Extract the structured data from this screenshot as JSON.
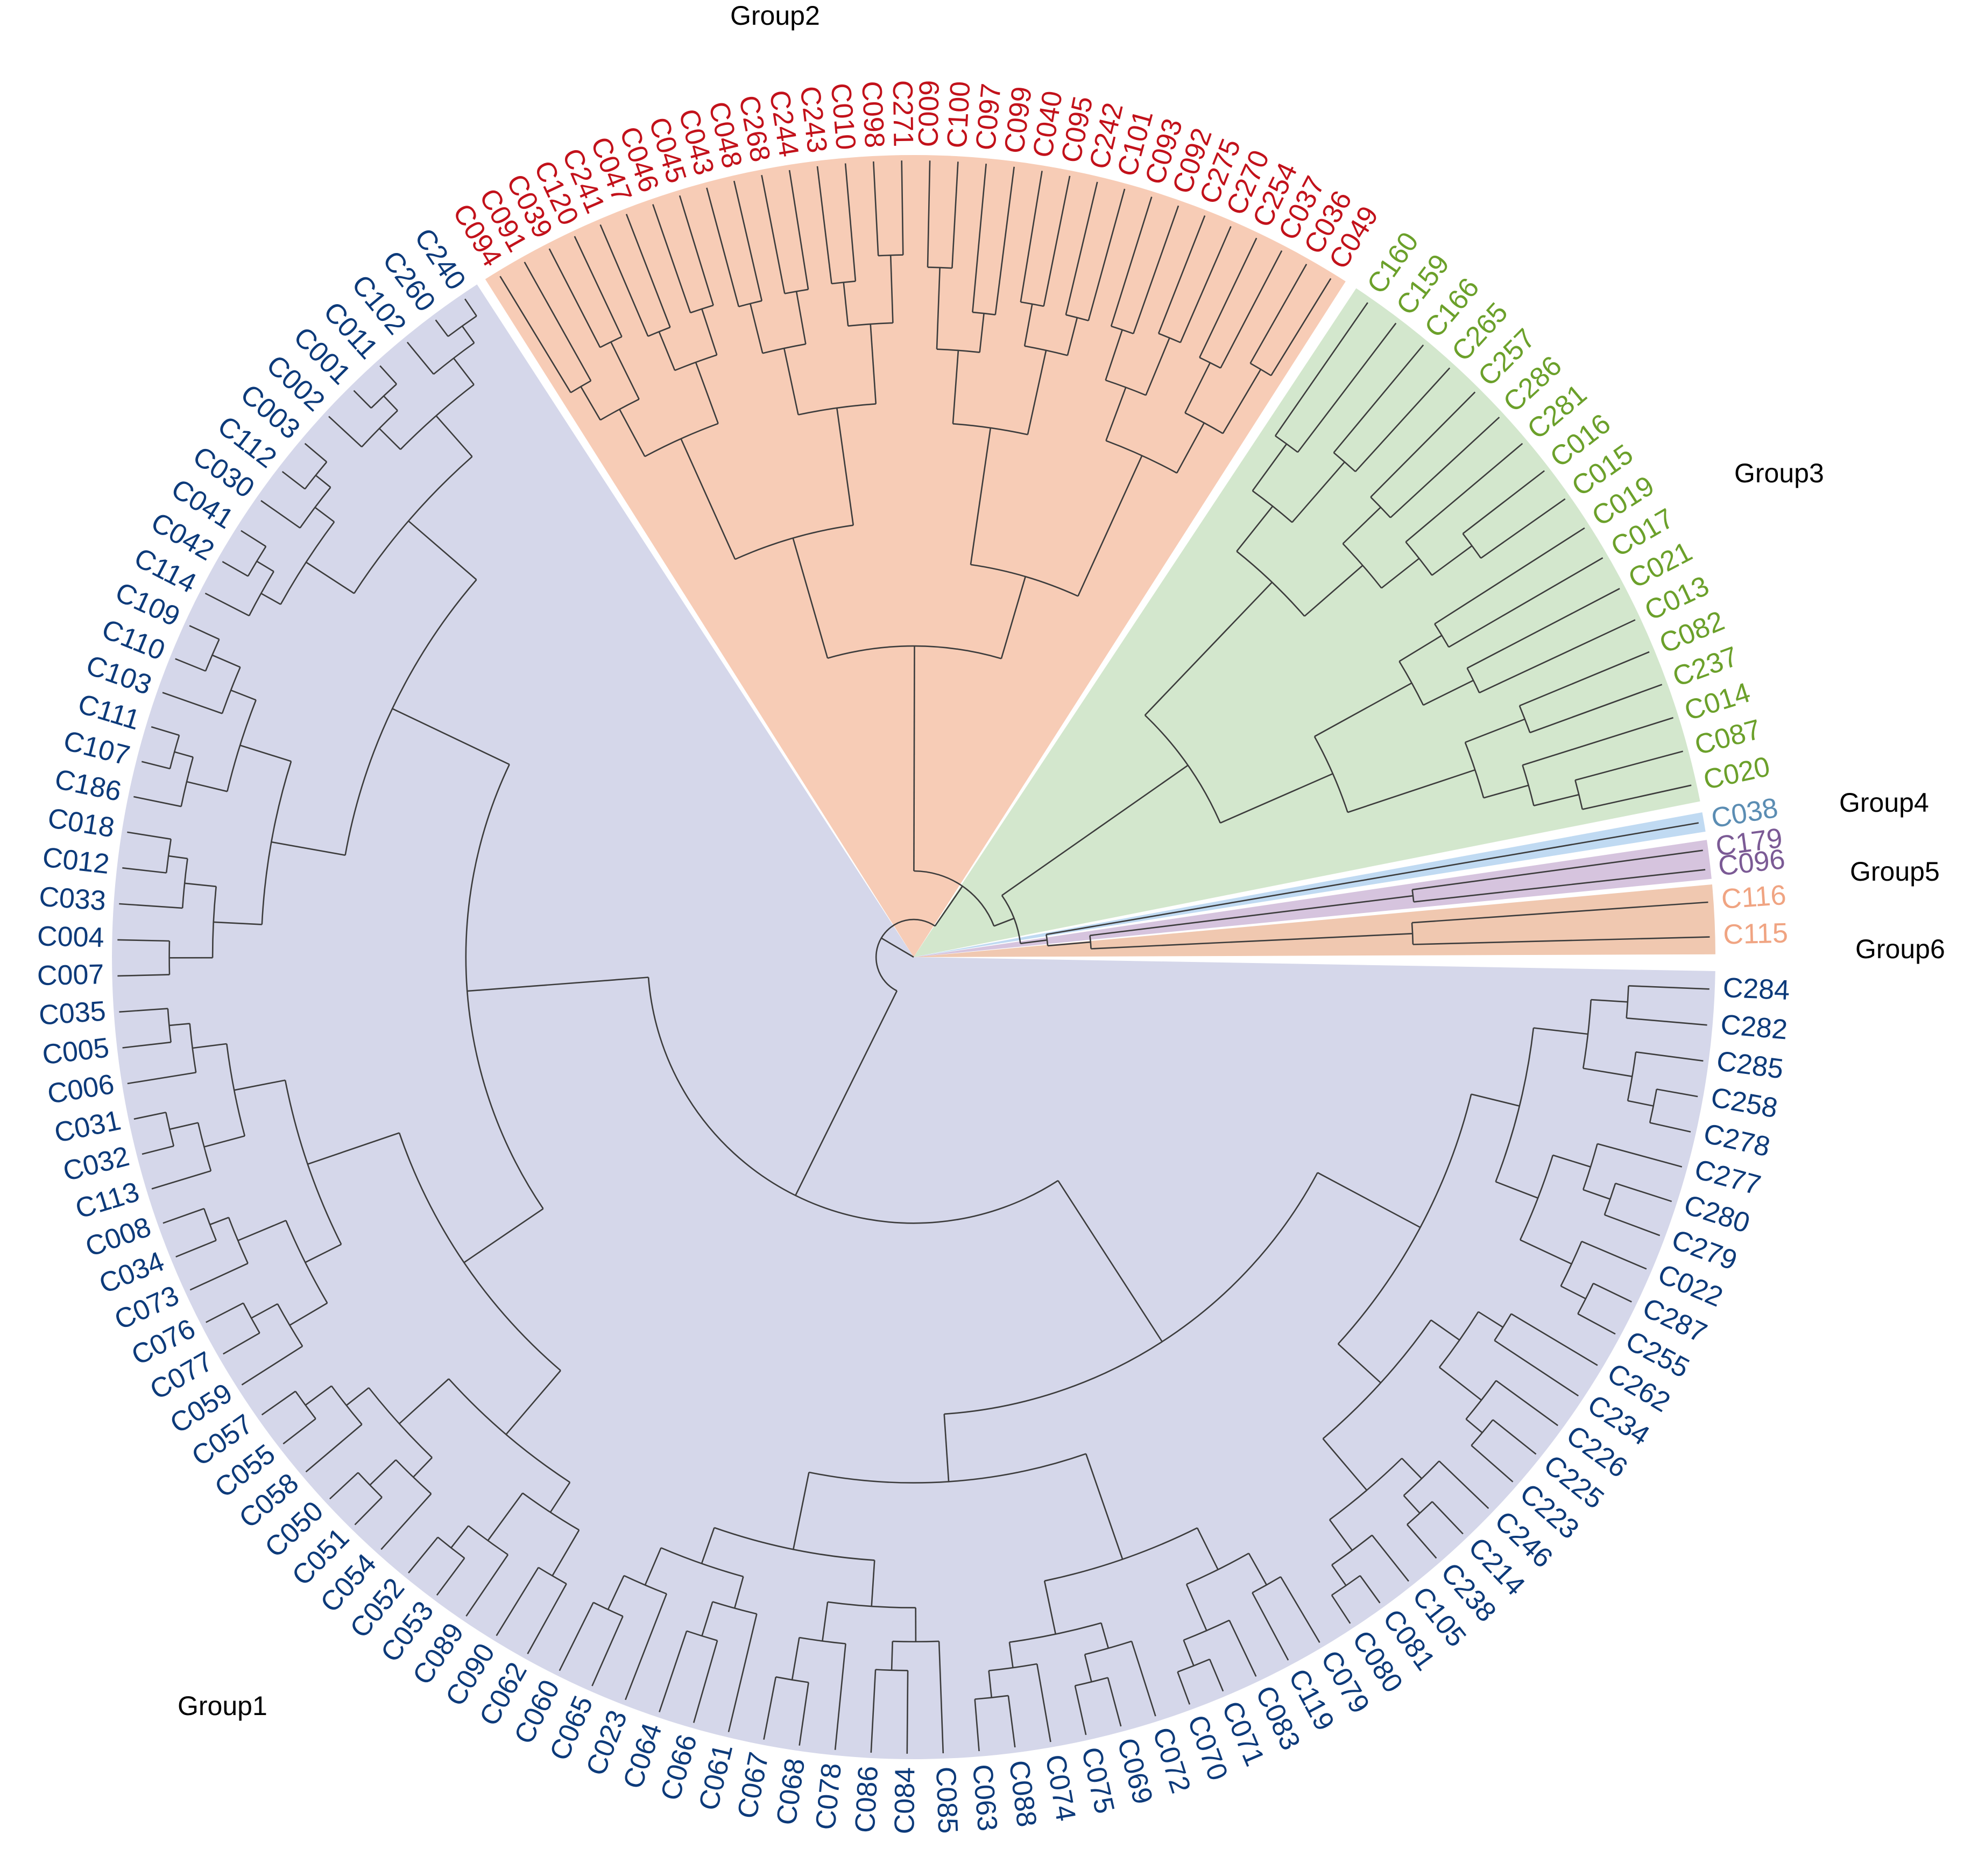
{
  "groups": [
    {
      "id": "Group1",
      "label": "Group1",
      "text_color": "#0c3a7a",
      "fill": "#d5d7ea"
    },
    {
      "id": "Group2",
      "label": "Group2",
      "text_color": "#c2111a",
      "fill": "#f7ccb6"
    },
    {
      "id": "Group3",
      "label": "Group3",
      "text_color": "#6ba02a",
      "fill": "#d3e7cd"
    },
    {
      "id": "Group4",
      "label": "Group4",
      "text_color": "#5b8db3",
      "fill": "#c0daf2"
    },
    {
      "id": "Group5",
      "label": "Group5",
      "text_color": "#7b5a95",
      "fill": "#d6c4de"
    },
    {
      "id": "Group6",
      "label": "Group6",
      "text_color": "#f0a482",
      "fill": "#f0c8b0"
    }
  ],
  "leaves": {
    "Group6": [
      "C115",
      "C116"
    ],
    "Group5": [
      "C096",
      "C179"
    ],
    "Group4": [
      "C038"
    ],
    "Group3": [
      "C020",
      "C087",
      "C014",
      "C237",
      "C082",
      "C013",
      "C021",
      "C017",
      "C019",
      "C015",
      "C016",
      "C281",
      "C286",
      "C257",
      "C265",
      "C166",
      "C159",
      "C160"
    ],
    "Group2": [
      "C049",
      "C036",
      "C037",
      "C254",
      "C270",
      "C275",
      "C092",
      "C093",
      "C101",
      "C242",
      "C095",
      "C040",
      "C099",
      "C097",
      "C100",
      "C009",
      "C271",
      "C098",
      "C010",
      "C243",
      "C244",
      "C268",
      "C048",
      "C043",
      "C045",
      "C046",
      "C047",
      "C241",
      "C120",
      "C039",
      "C091",
      "C094"
    ],
    "Group1": [
      "C240",
      "C260",
      "C102",
      "C011",
      "C001",
      "C002",
      "C003",
      "C112",
      "C030",
      "C041",
      "C042",
      "C114",
      "C109",
      "C110",
      "C103",
      "C111",
      "C107",
      "C186",
      "C018",
      "C012",
      "C033",
      "C004",
      "C007",
      "C035",
      "C005",
      "C006",
      "C031",
      "C032",
      "C113",
      "C008",
      "C034",
      "C073",
      "C076",
      "C077",
      "C059",
      "C057",
      "C055",
      "C058",
      "C050",
      "C051",
      "C054",
      "C052",
      "C053",
      "C089",
      "C090",
      "C062",
      "C060",
      "C065",
      "C023",
      "C064",
      "C066",
      "C061",
      "C067",
      "C068",
      "C078",
      "C086",
      "C084",
      "C085",
      "C063",
      "C088",
      "C074",
      "C075",
      "C069",
      "C072",
      "C070",
      "C071",
      "C083",
      "C119",
      "C079",
      "C080",
      "C081",
      "C105",
      "C238",
      "C214",
      "C246",
      "C223",
      "C225",
      "C226",
      "C234",
      "C262",
      "C255",
      "C287",
      "C022",
      "C279",
      "C280",
      "C277",
      "C278",
      "C258",
      "C285",
      "C282",
      "C284"
    ]
  }
}
